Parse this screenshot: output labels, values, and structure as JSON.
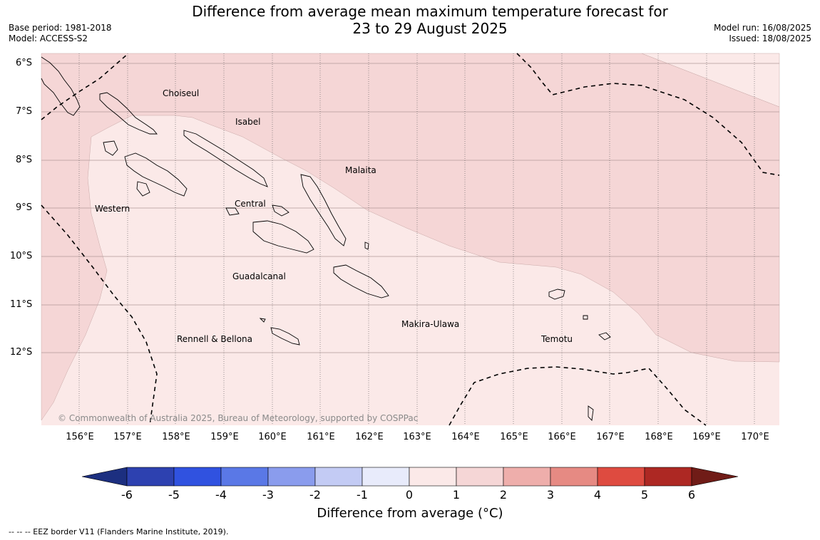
{
  "title_line1": "Difference from average mean maximum temperature forecast for",
  "title_line2": "23 to 29 August 2025",
  "base_period": "Base period: 1981-2018",
  "model": "Model: ACCESS-S2",
  "model_run": "Model run: 16/08/2025",
  "issued": "Issued: 18/08/2025",
  "lat_labels": [
    "6°S",
    "7°S",
    "8°S",
    "9°S",
    "10°S",
    "11°S",
    "12°S"
  ],
  "lon_labels": [
    "156°E",
    "157°E",
    "158°E",
    "159°E",
    "160°E",
    "161°E",
    "162°E",
    "163°E",
    "164°E",
    "165°E",
    "166°E",
    "167°E",
    "168°E",
    "169°E",
    "170°E"
  ],
  "places": {
    "choiseul": "Choiseul",
    "isabel": "Isabel",
    "malaita": "Malaita",
    "western": "Western",
    "central": "Central",
    "guadalcanal": "Guadalcanal",
    "makira_ulawa": "Makira-Ulawa",
    "temotu": "Temotu",
    "rennell_bellona": "Rennell & Bellona"
  },
  "copyright": "© Commonwealth of Australia 2025, Bureau of Meteorology, supported by COSPPac",
  "colorbar": {
    "ticks": [
      "-6",
      "-5",
      "-4",
      "-3",
      "-2",
      "-1",
      "0",
      "1",
      "2",
      "3",
      "4",
      "5",
      "6"
    ],
    "colors": [
      "#1c2f80",
      "#2d41b0",
      "#3052e0",
      "#5a78e6",
      "#8a9ced",
      "#c3cbf4",
      "#e8ebfb",
      "#fbe9e8",
      "#f5d6d6",
      "#eeaeab",
      "#e68a83",
      "#de4b40",
      "#ad2823",
      "#701c17"
    ],
    "label": "Difference from average (°C)"
  },
  "footnote": "--  --  -- EEZ border V11 (Flanders Marine Institute, 2019).",
  "legend_colors": {
    "anomaly_0_to_1": "#fbe9e8",
    "anomaly_1_to_2": "#f5d6d6"
  }
}
